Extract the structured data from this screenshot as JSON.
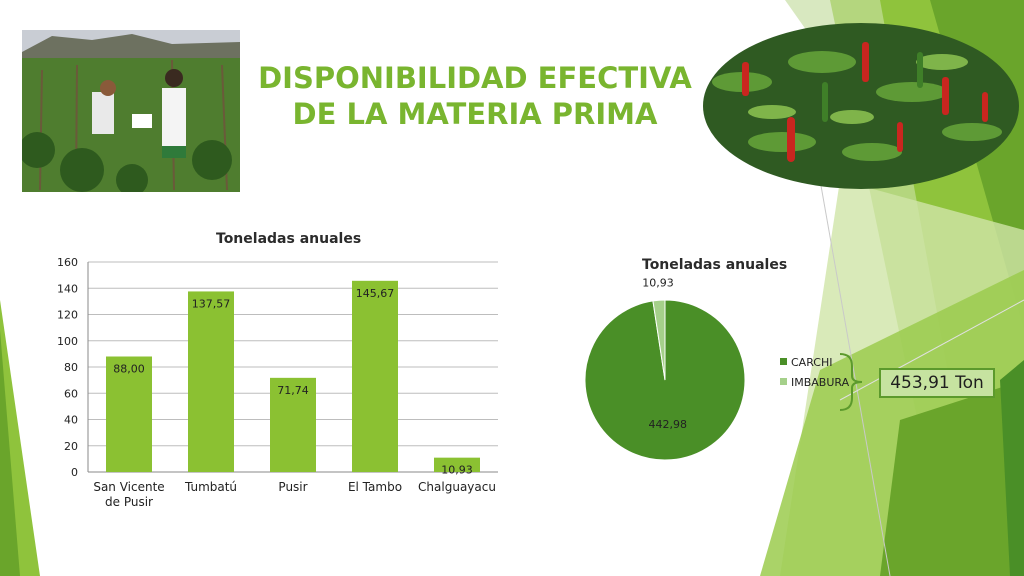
{
  "slide": {
    "title_line1": "DISPONIBILIDAD EFECTIVA",
    "title_line2": "DE LA MATERIA PRIMA",
    "total": "453,91 Ton",
    "accent_color": "#79b52f"
  },
  "chart_data": [
    {
      "type": "bar",
      "title": "Toneladas anuales",
      "categories": [
        "San Vicente de Pusir",
        "Tumbatú",
        "Pusir",
        "El Tambo",
        "Chalguayacu"
      ],
      "category_lines": [
        [
          "San Vicente",
          "de Pusir"
        ],
        [
          "Tumbatú"
        ],
        [
          "Pusir"
        ],
        [
          "El Tambo"
        ],
        [
          "Chalguayacu"
        ]
      ],
      "values": [
        88.0,
        137.57,
        71.74,
        145.67,
        10.93
      ],
      "data_labels": [
        "88,00",
        "137,57",
        "71,74",
        "145,67",
        "10,93"
      ],
      "yticks": [
        0,
        20,
        40,
        60,
        80,
        100,
        120,
        140,
        160
      ],
      "ylim": [
        0,
        160
      ],
      "grid": true,
      "color": "#8bc132"
    },
    {
      "type": "pie",
      "title": "Toneladas anuales",
      "labels": [
        "CARCHI",
        "IMBABURA"
      ],
      "values": [
        442.98,
        10.93
      ],
      "data_labels": [
        "442,98",
        "10,93"
      ],
      "colors": [
        "#4a8f27",
        "#a5d08a"
      ],
      "legend": "right"
    }
  ]
}
